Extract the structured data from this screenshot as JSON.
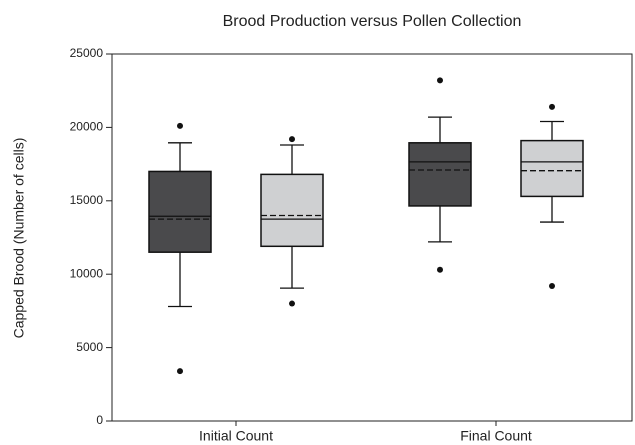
{
  "chart_data": {
    "type": "box",
    "title": "Brood Production versus Pollen Collection",
    "ylabel": "Capped Brood (Number of cells)",
    "categories": [
      "Initial Count",
      "Final Count"
    ],
    "ylim": [
      0,
      25000
    ],
    "yticks": [
      0,
      5000,
      10000,
      15000,
      20000,
      25000
    ],
    "series": [
      {
        "color": "#4a4a4c",
        "whisker_low": [
          7800,
          12200
        ],
        "q1": [
          11500,
          14650
        ],
        "median": [
          13950,
          17650
        ],
        "mean": [
          13750,
          17100
        ],
        "q3": [
          17000,
          18950
        ],
        "whisker_high": [
          18950,
          20700
        ],
        "outliers": [
          [
            20100,
            3400
          ],
          [
            23200,
            10300
          ]
        ]
      },
      {
        "color": "#cfd0d2",
        "whisker_low": [
          9050,
          13550
        ],
        "q1": [
          11900,
          15300
        ],
        "median": [
          13750,
          17650
        ],
        "mean": [
          14000,
          17050
        ],
        "q3": [
          16800,
          19100
        ],
        "whisker_high": [
          18800,
          20400
        ],
        "outliers": [
          [
            19200,
            8000
          ],
          [
            21400,
            9200
          ]
        ]
      }
    ]
  }
}
